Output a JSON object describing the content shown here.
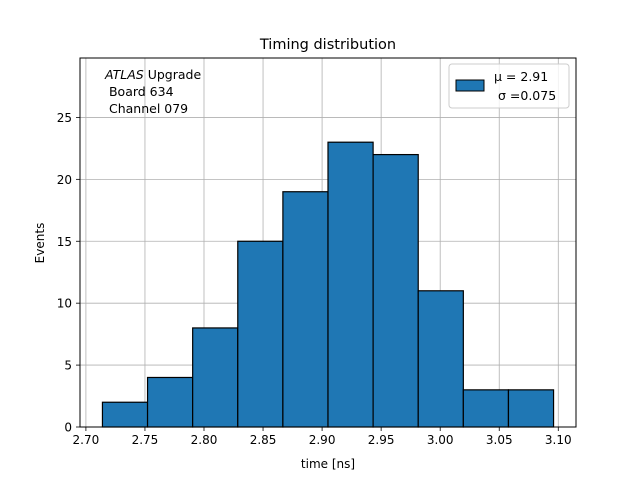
{
  "chart_data": {
    "type": "histogram",
    "title": "Timing distribution",
    "xlabel": "time [ns]",
    "ylabel": "Events",
    "xlim": [
      2.695,
      3.115
    ],
    "ylim": [
      0,
      29.8
    ],
    "xticks": [
      "2.70",
      "2.75",
      "2.80",
      "2.85",
      "2.90",
      "2.95",
      "3.00",
      "3.05",
      "3.10"
    ],
    "xtick_values": [
      2.7,
      2.75,
      2.8,
      2.85,
      2.9,
      2.95,
      3.0,
      3.05,
      3.1
    ],
    "yticks": [
      "0",
      "5",
      "10",
      "15",
      "20",
      "25"
    ],
    "ytick_values": [
      0,
      5,
      10,
      15,
      20,
      25
    ],
    "bin_edges": [
      2.714,
      2.7522,
      2.7904,
      2.8286,
      2.8668,
      2.905,
      2.9432,
      2.9814,
      3.0196,
      3.0578,
      3.096
    ],
    "values": [
      2,
      4,
      8,
      15,
      19,
      23,
      22,
      11,
      3,
      3
    ],
    "bar_color": "#1f77b4",
    "edge_color": "#000000",
    "grid": true,
    "legend_position": "top-right",
    "legend": {
      "line1": "μ = 2.91",
      "line2": "σ =0.075"
    },
    "annotation": {
      "line1_italic": "ATLAS",
      "line1_rest": " Upgrade",
      "line2": " Board 634",
      "line3": " Channel 079"
    }
  }
}
